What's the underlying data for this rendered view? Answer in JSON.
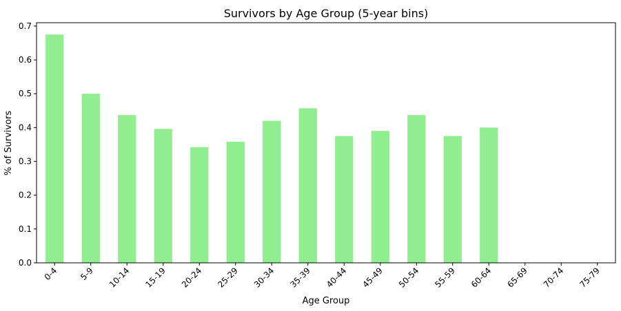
{
  "chart_data": {
    "type": "bar",
    "title": "Survivors by Age Group (5-year bins)",
    "xlabel": "Age Group",
    "ylabel": "% of Survivors",
    "categories": [
      "0-4",
      "5-9",
      "10-14",
      "15-19",
      "20-24",
      "25-29",
      "30-34",
      "35-39",
      "40-44",
      "45-49",
      "50-54",
      "55-59",
      "60-64",
      "65-69",
      "70-74",
      "75-79"
    ],
    "values": [
      0.675,
      0.5,
      0.437,
      0.396,
      0.342,
      0.358,
      0.42,
      0.457,
      0.375,
      0.39,
      0.437,
      0.375,
      0.4,
      0,
      0,
      0
    ],
    "ylim": [
      0,
      0.71
    ],
    "yticks": [
      0.0,
      0.1,
      0.2,
      0.3,
      0.4,
      0.5,
      0.6,
      0.7
    ],
    "ytick_labels": [
      "0.0",
      "0.1",
      "0.2",
      "0.3",
      "0.4",
      "0.5",
      "0.6",
      "0.7"
    ],
    "bar_color": "#90ee90",
    "grid": false,
    "legend": "none"
  }
}
